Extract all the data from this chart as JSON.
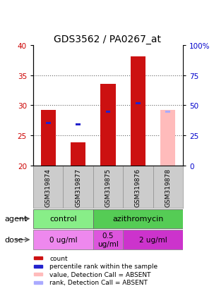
{
  "title": "GDS3562 / PA0267_at",
  "samples": [
    "GSM319874",
    "GSM319877",
    "GSM319875",
    "GSM319876",
    "GSM319878"
  ],
  "count_values": [
    29.2,
    23.9,
    33.5,
    38.1,
    null
  ],
  "count_absent": [
    null,
    null,
    null,
    null,
    29.2
  ],
  "percentile_values": [
    27.1,
    26.8,
    29.0,
    30.3,
    null
  ],
  "percentile_absent": [
    null,
    null,
    null,
    null,
    29.0
  ],
  "ylim_left": [
    20,
    40
  ],
  "ylim_right": [
    0,
    100
  ],
  "yticks_left": [
    20,
    25,
    30,
    35,
    40
  ],
  "yticks_right": [
    0,
    25,
    50,
    75,
    100
  ],
  "ytick_labels_left": [
    "20",
    "25",
    "30",
    "35",
    "40"
  ],
  "ytick_labels_right": [
    "0",
    "25",
    "50",
    "75",
    "100%"
  ],
  "bar_width": 0.5,
  "count_color": "#cc1111",
  "count_absent_color": "#ffbbbb",
  "percentile_color": "#2222cc",
  "percentile_absent_color": "#aaaaff",
  "agent_groups": [
    {
      "label": "control",
      "cols": [
        0,
        1
      ],
      "color": "#88ee88"
    },
    {
      "label": "azithromycin",
      "cols": [
        2,
        3,
        4
      ],
      "color": "#55cc55"
    }
  ],
  "dose_groups": [
    {
      "label": "0 ug/ml",
      "cols": [
        0,
        1
      ],
      "color": "#ee88ee"
    },
    {
      "label": "0.5\nug/ml",
      "cols": [
        2
      ],
      "color": "#dd55dd"
    },
    {
      "label": "2 ug/ml",
      "cols": [
        3,
        4
      ],
      "color": "#cc33cc"
    }
  ],
  "legend_items": [
    {
      "label": "count",
      "color": "#cc1111"
    },
    {
      "label": "percentile rank within the sample",
      "color": "#2222cc"
    },
    {
      "label": "value, Detection Call = ABSENT",
      "color": "#ffbbbb"
    },
    {
      "label": "rank, Detection Call = ABSENT",
      "color": "#aaaaff"
    }
  ],
  "sample_bg_color": "#cccccc",
  "background_color": "#ffffff",
  "grid_color": "#888888",
  "left_label_color": "#cc0000",
  "right_label_color": "#0000cc"
}
